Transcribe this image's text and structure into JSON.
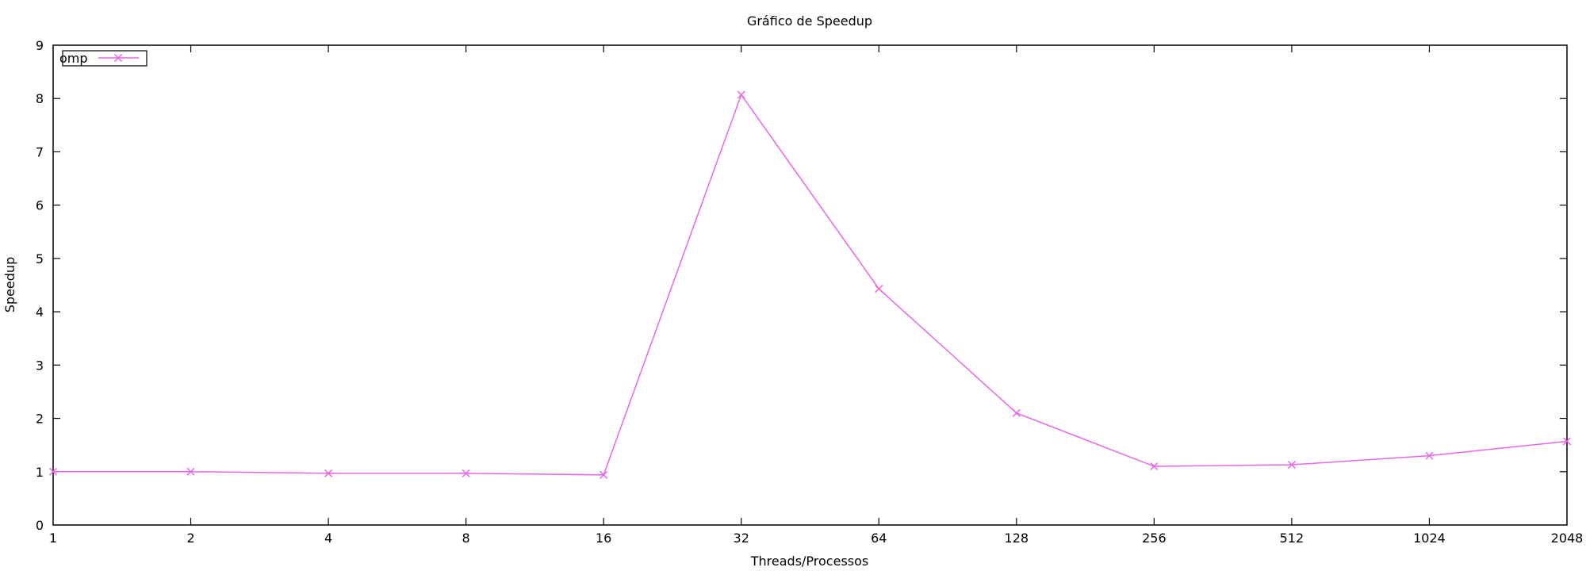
{
  "chart_data": {
    "type": "line",
    "title": "Gráfico de Speedup",
    "xlabel": "Threads/Processos",
    "ylabel": "Speedup",
    "x_scale": "log2",
    "categories": [
      "1",
      "2",
      "4",
      "8",
      "16",
      "32",
      "64",
      "128",
      "256",
      "512",
      "1024",
      "2048"
    ],
    "ylim": [
      0,
      9
    ],
    "yticks": [
      "0",
      "1",
      "2",
      "3",
      "4",
      "5",
      "6",
      "7",
      "8",
      "9"
    ],
    "grid": false,
    "legend_position": "top-left",
    "series": [
      {
        "name": "omp",
        "color": "#e866e8",
        "marker": "x",
        "values": [
          1.0,
          1.0,
          0.97,
          0.97,
          0.94,
          8.07,
          4.43,
          2.1,
          1.1,
          1.13,
          1.3,
          1.57
        ]
      }
    ]
  }
}
